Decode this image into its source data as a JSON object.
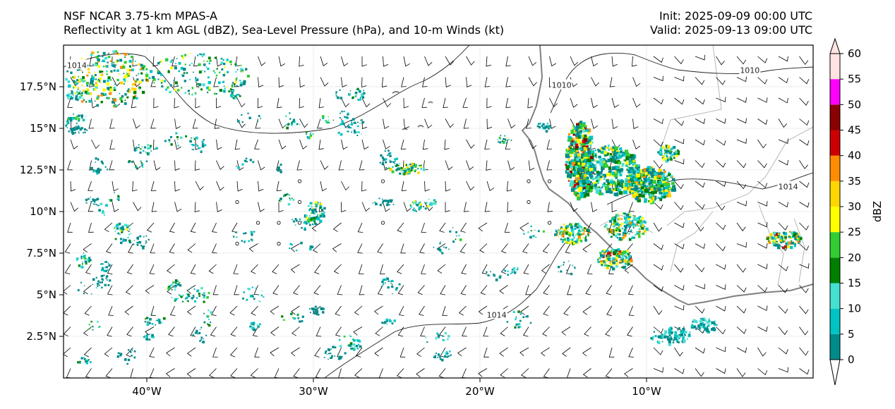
{
  "header": {
    "title_line1": "NSF NCAR 3.75-km MPAS-A",
    "title_line2": "Reflectivity at 1 km AGL (dBZ), Sea-Level Pressure (hPa), and 10-m Winds (kt)",
    "init": "Init: 2025-09-09 00:00 UTC",
    "valid": "Valid: 2025-09-13 09:00 UTC"
  },
  "map": {
    "lon_range": [
      -45,
      0
    ],
    "lat_range": [
      0,
      20
    ],
    "lon_ticks": [
      {
        "value": -40,
        "label": "40°W"
      },
      {
        "value": -30,
        "label": "30°W"
      },
      {
        "value": -20,
        "label": "20°W"
      },
      {
        "value": -10,
        "label": "10°W"
      }
    ],
    "lat_ticks": [
      {
        "value": 2.5,
        "label": "2.5°N"
      },
      {
        "value": 5,
        "label": "5°N"
      },
      {
        "value": 7.5,
        "label": "7.5°N"
      },
      {
        "value": 10,
        "label": "10°N"
      },
      {
        "value": 12.5,
        "label": "12.5°N"
      },
      {
        "value": 15,
        "label": "15°N"
      },
      {
        "value": 17.5,
        "label": "17.5°N"
      }
    ],
    "isobar_labels": [
      {
        "text": "1014",
        "lon": -44.2,
        "lat": 18.8
      },
      {
        "text": "1010",
        "lon": -15.1,
        "lat": 17.6
      },
      {
        "text": "1010",
        "lon": -3.8,
        "lat": 18.5
      },
      {
        "text": "1014",
        "lon": -1.5,
        "lat": 11.5
      },
      {
        "text": "1014",
        "lon": -19.0,
        "lat": 3.8
      }
    ]
  },
  "colorbar": {
    "label": "dBZ",
    "levels": [
      0,
      5,
      10,
      15,
      20,
      25,
      30,
      35,
      40,
      45,
      50,
      55,
      60
    ],
    "tick_labels": [
      "0",
      "5",
      "10",
      "15",
      "20",
      "25",
      "30",
      "35",
      "40",
      "45",
      "50",
      "55",
      "60"
    ],
    "colors": [
      "#008b8b",
      "#00c4c4",
      "#44e0d0",
      "#008000",
      "#32cd32",
      "#ffff00",
      "#ffd700",
      "#ff8c00",
      "#cc0000",
      "#8b0000",
      "#ff00ff",
      "#ffe4e1"
    ]
  }
}
